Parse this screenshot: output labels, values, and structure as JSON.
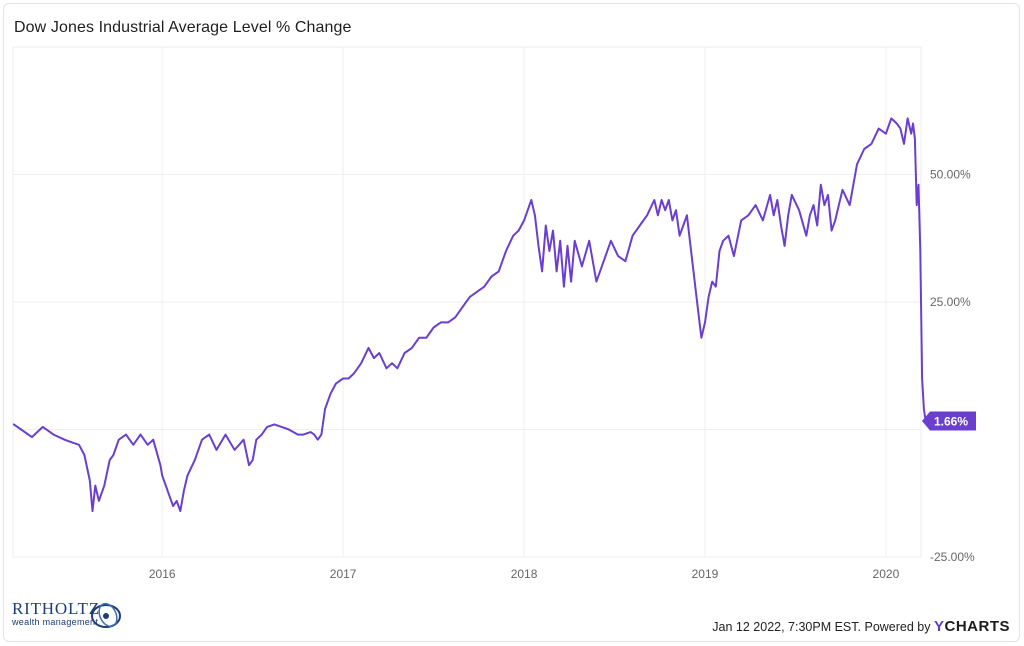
{
  "chart_data": {
    "type": "line",
    "title": "Dow Jones Industrial Average Level % Change",
    "xlabel": "",
    "ylabel": "",
    "x_range": [
      "2015-03-06",
      "2020-03-12"
    ],
    "ylim": [
      -25,
      75
    ],
    "y_ticks": [
      50,
      25,
      -25
    ],
    "y_tick_labels": [
      "50.00%",
      "25.00%",
      "-25.00%"
    ],
    "x_ticks": [
      2016,
      2017,
      2018,
      2019,
      2020
    ],
    "x_tick_labels": [
      "2016",
      "2017",
      "2018",
      "2019",
      "2020"
    ],
    "grid": true,
    "y_axis_side": "right",
    "line_color": "#6a3fd0",
    "series": [
      {
        "x": [
          2015.18,
          2015.22,
          2015.28,
          2015.34,
          2015.4,
          2015.46,
          2015.5,
          2015.54,
          2015.57,
          2015.6,
          2015.615,
          2015.63,
          2015.65,
          2015.68,
          2015.71,
          2015.73,
          2015.76,
          2015.8,
          2015.84,
          2015.88,
          2015.92,
          2015.95,
          2015.99,
          2016.0,
          2016.02,
          2016.04,
          2016.06,
          2016.08,
          2016.1,
          2016.12,
          2016.14,
          2016.18,
          2016.22,
          2016.26,
          2016.3,
          2016.35,
          2016.4,
          2016.45,
          2016.48,
          2016.5,
          2016.52,
          2016.55,
          2016.58,
          2016.62,
          2016.66,
          2016.7,
          2016.75,
          2016.78,
          2016.82,
          2016.84,
          2016.86,
          2016.88,
          2016.9,
          2016.93,
          2016.96,
          2017.0,
          2017.03,
          2017.06,
          2017.1,
          2017.14,
          2017.17,
          2017.2,
          2017.24,
          2017.27,
          2017.3,
          2017.34,
          2017.38,
          2017.42,
          2017.46,
          2017.5,
          2017.54,
          2017.58,
          2017.62,
          2017.66,
          2017.7,
          2017.74,
          2017.78,
          2017.82,
          2017.86,
          2017.9,
          2017.94,
          2017.97,
          2018.0,
          2018.02,
          2018.04,
          2018.06,
          2018.08,
          2018.1,
          2018.12,
          2018.14,
          2018.16,
          2018.18,
          2018.2,
          2018.22,
          2018.24,
          2018.26,
          2018.28,
          2018.32,
          2018.36,
          2018.4,
          2018.44,
          2018.48,
          2018.52,
          2018.56,
          2018.6,
          2018.64,
          2018.68,
          2018.72,
          2018.74,
          2018.76,
          2018.78,
          2018.8,
          2018.82,
          2018.84,
          2018.86,
          2018.88,
          2018.9,
          2018.92,
          2018.94,
          2018.96,
          2018.98,
          2019.0,
          2019.02,
          2019.04,
          2019.06,
          2019.08,
          2019.1,
          2019.13,
          2019.16,
          2019.2,
          2019.24,
          2019.28,
          2019.32,
          2019.36,
          2019.38,
          2019.4,
          2019.42,
          2019.44,
          2019.46,
          2019.48,
          2019.52,
          2019.56,
          2019.58,
          2019.6,
          2019.62,
          2019.64,
          2019.66,
          2019.68,
          2019.7,
          2019.72,
          2019.76,
          2019.8,
          2019.84,
          2019.88,
          2019.92,
          2019.96,
          2020.0,
          2020.03,
          2020.06,
          2020.08,
          2020.1,
          2020.12,
          2020.14,
          2020.15,
          2020.16,
          2020.17,
          2020.18,
          2020.19,
          2020.2,
          2020.21,
          2020.22
        ],
        "values": [
          1,
          0,
          -1.5,
          0.5,
          -1,
          -2,
          -2.5,
          -3,
          -5,
          -10,
          -16,
          -11,
          -14,
          -11,
          -6,
          -5,
          -2,
          -1,
          -3,
          -1,
          -3,
          -2,
          -7,
          -9,
          -11,
          -13,
          -15,
          -14,
          -16,
          -12,
          -9,
          -6,
          -2,
          -1,
          -4,
          -1,
          -4,
          -2,
          -7,
          -6,
          -2,
          -1,
          0.5,
          1,
          0.5,
          0,
          -1,
          -1,
          -0.5,
          -1,
          -2,
          -1,
          4,
          7,
          9,
          10,
          10,
          11,
          13,
          16,
          14,
          15,
          12,
          13,
          12,
          15,
          16,
          18,
          18,
          20,
          21,
          21,
          22,
          24,
          26,
          27,
          28,
          30,
          31,
          35,
          38,
          39,
          41,
          43,
          45,
          42,
          36,
          31,
          40,
          35,
          39,
          31,
          37,
          28,
          36,
          29,
          37,
          32,
          37,
          29,
          33,
          37,
          34,
          33,
          38,
          40,
          42,
          45,
          42,
          45,
          43,
          45,
          41,
          43,
          38,
          40,
          42,
          36,
          30,
          24,
          18,
          21,
          26,
          29,
          28,
          35,
          37,
          38,
          34,
          41,
          42,
          44,
          41,
          46,
          42,
          45,
          40,
          36,
          42,
          46,
          43,
          38,
          42,
          44,
          40,
          48,
          44,
          46,
          39,
          41,
          47,
          44,
          52,
          55,
          56,
          59,
          58,
          61,
          60,
          59,
          56,
          61,
          58,
          60,
          57,
          44,
          48,
          35,
          10,
          4,
          1.66
        ]
      }
    ],
    "last_value_label": "1.66%"
  },
  "footer": {
    "timestamp": "Jan 12 2022, 7:30PM EST.",
    "powered_by": "Powered by",
    "brand_y": "Y",
    "brand_rest": "CHARTS"
  },
  "logo": {
    "name": "RITHOLTZ",
    "sub": "wealth management"
  }
}
